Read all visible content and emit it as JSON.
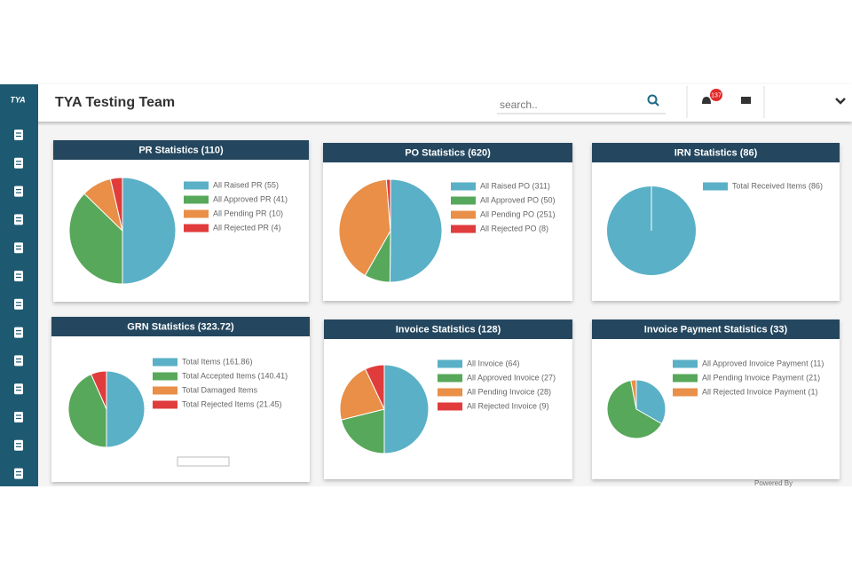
{
  "header": {
    "logo": "TYA",
    "title": "TYA Testing Team",
    "search_placeholder": "search..",
    "notification_count": 137
  },
  "footer": {
    "powered_by": "Powered By"
  },
  "chart_data": [
    {
      "type": "pie",
      "title": "PR Statistics (110)",
      "categories": [
        "All Raised PR (55)",
        "All Approved PR (41)",
        "All Pending PR (10)",
        "All Rejected PR (4)"
      ],
      "values": [
        55,
        41,
        10,
        4
      ],
      "colors": [
        "#5ab0c6",
        "#57a85a",
        "#e98f47",
        "#e03c3c"
      ]
    },
    {
      "type": "pie",
      "title": "PO Statistics (620)",
      "categories": [
        "All Raised PO (311)",
        "All Approved PO (50)",
        "All Pending PO (251)",
        "All Rejected PO (8)"
      ],
      "values": [
        311,
        50,
        251,
        8
      ],
      "colors": [
        "#5ab0c6",
        "#57a85a",
        "#e98f47",
        "#e03c3c"
      ]
    },
    {
      "type": "pie",
      "title": "IRN Statistics (86)",
      "categories": [
        "Total Received Items (86)"
      ],
      "values": [
        86
      ],
      "colors": [
        "#5ab0c6"
      ]
    },
    {
      "type": "pie",
      "title": "GRN Statistics (323.72)",
      "categories": [
        "Total Items (161.86)",
        "Total Accepted Items (140.41)",
        "Total Damaged Items",
        "Total Rejected Items (21.45)"
      ],
      "values": [
        161.86,
        140.41,
        0,
        21.45
      ],
      "colors": [
        "#5ab0c6",
        "#57a85a",
        "#e98f47",
        "#e03c3c"
      ]
    },
    {
      "type": "pie",
      "title": "Invoice Statistics (128)",
      "categories": [
        "All Invoice (64)",
        "All Approved Invoice (27)",
        "All Pending Invoice (28)",
        "All Rejected Invoice (9)"
      ],
      "values": [
        64,
        27,
        28,
        9
      ],
      "colors": [
        "#5ab0c6",
        "#57a85a",
        "#e98f47",
        "#e03c3c"
      ]
    },
    {
      "type": "pie",
      "title": "Invoice Payment Statistics (33)",
      "categories": [
        "All Approved Invoice Payment (11)",
        "All Pending Invoice Payment (21)",
        "All Rejected Invoice Payment (1)"
      ],
      "values": [
        11,
        21,
        1
      ],
      "colors": [
        "#5ab0c6",
        "#57a85a",
        "#e98f47"
      ]
    }
  ]
}
